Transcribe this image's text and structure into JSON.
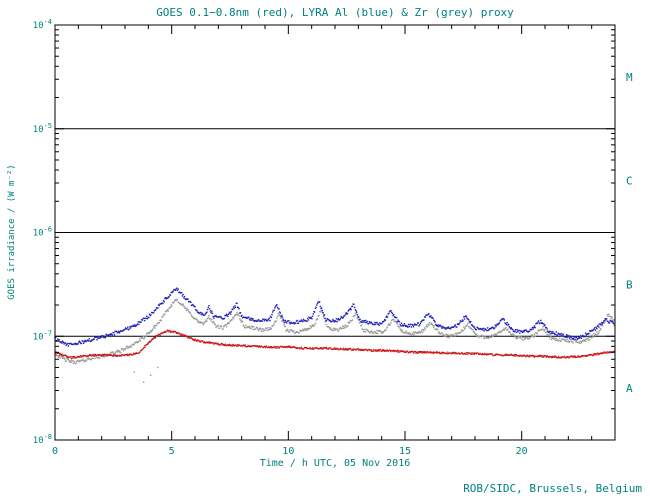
{
  "chart_data": {
    "type": "scatter",
    "title": "GOES 0.1−0.8nm (red), LYRA Al (blue) & Zr (grey) proxy",
    "xlabel": "Time / h UTC, 05 Nov 2016",
    "ylabel": "GOES irradiance / (W m⁻²)",
    "credit": "ROB/SIDC, Brussels, Belgium",
    "x_axis": {
      "min": 0,
      "max": 24,
      "major_ticks": [
        0,
        5,
        10,
        15,
        20
      ],
      "major_tick_labels": [
        "0",
        "5",
        "10",
        "15",
        "20"
      ],
      "minor_step": 1
    },
    "y_axis": {
      "scale": "log",
      "log_min_exp": -8,
      "log_max_exp": -4,
      "decade_exponents": [
        -4,
        -5,
        -6,
        -7,
        -8
      ],
      "tick_label_base": "10"
    },
    "hline_exponents": [
      -5,
      -6,
      -7
    ],
    "flare_classes": [
      {
        "label": "M",
        "band_top_exp": -4,
        "band_bottom_exp": -5
      },
      {
        "label": "C",
        "band_top_exp": -5,
        "band_bottom_exp": -6
      },
      {
        "label": "B",
        "band_top_exp": -6,
        "band_bottom_exp": -7
      },
      {
        "label": "A",
        "band_top_exp": -7,
        "band_bottom_exp": -8
      }
    ],
    "colors": {
      "goes_red": "#cc1111",
      "lyra_al_blue": "#2222bb",
      "lyra_zr_grey": "#9a9a9a",
      "text_teal": "#008080",
      "axis_black": "#000000"
    },
    "flux_units": "W m^-2",
    "flux_scale": 1e-08,
    "series": [
      {
        "name": "GOES 0.1-0.8nm",
        "color_key": "goes_red",
        "points": [
          [
            0,
            7.0
          ],
          [
            0.3,
            6.6
          ],
          [
            0.7,
            6.2
          ],
          [
            1.2,
            6.4
          ],
          [
            1.7,
            6.6
          ],
          [
            2.2,
            6.6
          ],
          [
            2.7,
            6.5
          ],
          [
            3.2,
            6.6
          ],
          [
            3.6,
            7.0
          ],
          [
            4.0,
            8.6
          ],
          [
            4.4,
            10.2
          ],
          [
            4.8,
            11.3
          ],
          [
            5.1,
            11.0
          ],
          [
            5.5,
            10.2
          ],
          [
            6.0,
            9.2
          ],
          [
            6.5,
            8.7
          ],
          [
            7.0,
            8.4
          ],
          [
            7.5,
            8.2
          ],
          [
            8.0,
            8.1
          ],
          [
            8.5,
            8.0
          ],
          [
            9.0,
            7.9
          ],
          [
            9.5,
            7.8
          ],
          [
            10.0,
            7.9
          ],
          [
            10.5,
            7.7
          ],
          [
            11.0,
            7.6
          ],
          [
            11.5,
            7.7
          ],
          [
            12.0,
            7.6
          ],
          [
            12.5,
            7.5
          ],
          [
            13.0,
            7.4
          ],
          [
            13.5,
            7.3
          ],
          [
            14.0,
            7.3
          ],
          [
            14.5,
            7.2
          ],
          [
            15.0,
            7.1
          ],
          [
            15.5,
            7.0
          ],
          [
            16.0,
            7.0
          ],
          [
            16.5,
            6.9
          ],
          [
            17.0,
            6.9
          ],
          [
            17.5,
            6.8
          ],
          [
            18.0,
            6.8
          ],
          [
            18.5,
            6.7
          ],
          [
            19.0,
            6.6
          ],
          [
            19.5,
            6.6
          ],
          [
            20.0,
            6.5
          ],
          [
            20.5,
            6.4
          ],
          [
            21.0,
            6.4
          ],
          [
            21.5,
            6.3
          ],
          [
            22.0,
            6.3
          ],
          [
            22.5,
            6.4
          ],
          [
            23.0,
            6.6
          ],
          [
            23.5,
            6.9
          ],
          [
            24.0,
            7.1
          ]
        ],
        "outlier_points": []
      },
      {
        "name": "LYRA Al proxy",
        "color_key": "lyra_al_blue",
        "points": [
          [
            0,
            9.5
          ],
          [
            0.3,
            8.8
          ],
          [
            0.6,
            8.2
          ],
          [
            1.0,
            8.6
          ],
          [
            1.5,
            9.2
          ],
          [
            2.0,
            9.8
          ],
          [
            2.5,
            10.6
          ],
          [
            3.0,
            11.6
          ],
          [
            3.5,
            13.0
          ],
          [
            4.0,
            15.5
          ],
          [
            4.5,
            20.0
          ],
          [
            5.0,
            26.0
          ],
          [
            5.2,
            28.5
          ],
          [
            5.5,
            24.5
          ],
          [
            5.8,
            21.0
          ],
          [
            6.1,
            17.5
          ],
          [
            6.4,
            16.0
          ],
          [
            6.6,
            19.0
          ],
          [
            6.8,
            15.5
          ],
          [
            7.2,
            15.0
          ],
          [
            7.5,
            16.5
          ],
          [
            7.8,
            20.5
          ],
          [
            8.0,
            15.5
          ],
          [
            8.4,
            14.5
          ],
          [
            8.8,
            14.0
          ],
          [
            9.2,
            14.5
          ],
          [
            9.5,
            20.0
          ],
          [
            9.8,
            14.0
          ],
          [
            10.2,
            13.5
          ],
          [
            10.6,
            14.0
          ],
          [
            11.0,
            15.0
          ],
          [
            11.3,
            22.0
          ],
          [
            11.6,
            14.5
          ],
          [
            12.0,
            14.0
          ],
          [
            12.4,
            15.5
          ],
          [
            12.8,
            20.0
          ],
          [
            13.1,
            14.0
          ],
          [
            13.5,
            13.5
          ],
          [
            14.0,
            13.0
          ],
          [
            14.4,
            17.5
          ],
          [
            14.8,
            13.0
          ],
          [
            15.2,
            12.5
          ],
          [
            15.6,
            13.0
          ],
          [
            16.0,
            16.5
          ],
          [
            16.4,
            12.5
          ],
          [
            16.8,
            12.0
          ],
          [
            17.2,
            12.5
          ],
          [
            17.6,
            15.5
          ],
          [
            18.0,
            12.0
          ],
          [
            18.4,
            11.5
          ],
          [
            18.8,
            12.0
          ],
          [
            19.2,
            14.5
          ],
          [
            19.6,
            11.5
          ],
          [
            20.0,
            11.0
          ],
          [
            20.4,
            11.5
          ],
          [
            20.8,
            14.0
          ],
          [
            21.2,
            11.0
          ],
          [
            21.6,
            10.5
          ],
          [
            22.0,
            10.0
          ],
          [
            22.4,
            9.5
          ],
          [
            22.8,
            10.5
          ],
          [
            23.2,
            12.0
          ],
          [
            23.6,
            14.5
          ],
          [
            24.0,
            13.0
          ]
        ],
        "outlier_points": []
      },
      {
        "name": "LYRA Zr proxy",
        "color_key": "lyra_zr_grey",
        "points": [
          [
            0,
            6.8
          ],
          [
            0.4,
            6.0
          ],
          [
            0.8,
            5.6
          ],
          [
            1.2,
            5.8
          ],
          [
            1.6,
            6.2
          ],
          [
            2.0,
            6.4
          ],
          [
            2.4,
            6.8
          ],
          [
            2.8,
            7.2
          ],
          [
            3.2,
            8.0
          ],
          [
            3.6,
            9.0
          ],
          [
            4.0,
            10.5
          ],
          [
            4.5,
            14.0
          ],
          [
            5.0,
            20.0
          ],
          [
            5.2,
            23.0
          ],
          [
            5.5,
            19.5
          ],
          [
            5.8,
            16.5
          ],
          [
            6.1,
            14.0
          ],
          [
            6.4,
            13.0
          ],
          [
            6.6,
            15.5
          ],
          [
            6.9,
            12.5
          ],
          [
            7.2,
            12.0
          ],
          [
            7.5,
            13.5
          ],
          [
            7.8,
            17.0
          ],
          [
            8.1,
            12.5
          ],
          [
            8.5,
            12.0
          ],
          [
            8.9,
            11.5
          ],
          [
            9.3,
            12.0
          ],
          [
            9.6,
            16.5
          ],
          [
            9.9,
            11.5
          ],
          [
            10.3,
            11.0
          ],
          [
            10.7,
            11.5
          ],
          [
            11.1,
            12.5
          ],
          [
            11.4,
            18.0
          ],
          [
            11.7,
            12.0
          ],
          [
            12.1,
            11.5
          ],
          [
            12.5,
            12.5
          ],
          [
            12.9,
            16.5
          ],
          [
            13.2,
            11.5
          ],
          [
            13.6,
            11.0
          ],
          [
            14.1,
            11.0
          ],
          [
            14.5,
            14.5
          ],
          [
            14.9,
            11.0
          ],
          [
            15.3,
            10.5
          ],
          [
            15.7,
            11.0
          ],
          [
            16.1,
            13.5
          ],
          [
            16.5,
            10.5
          ],
          [
            16.9,
            10.0
          ],
          [
            17.3,
            10.5
          ],
          [
            17.7,
            13.0
          ],
          [
            18.1,
            10.0
          ],
          [
            18.5,
            9.8
          ],
          [
            18.9,
            10.2
          ],
          [
            19.3,
            12.0
          ],
          [
            19.7,
            9.8
          ],
          [
            20.1,
            9.5
          ],
          [
            20.5,
            10.0
          ],
          [
            20.9,
            12.0
          ],
          [
            21.3,
            9.5
          ],
          [
            21.7,
            9.2
          ],
          [
            22.1,
            9.0
          ],
          [
            22.5,
            8.8
          ],
          [
            22.9,
            9.5
          ],
          [
            23.3,
            11.0
          ],
          [
            23.7,
            16.0
          ],
          [
            24.0,
            14.0
          ]
        ],
        "outlier_points": [
          [
            3.4,
            4.5
          ],
          [
            3.8,
            3.6
          ],
          [
            4.1,
            4.2
          ],
          [
            4.4,
            5.0
          ]
        ]
      }
    ]
  }
}
